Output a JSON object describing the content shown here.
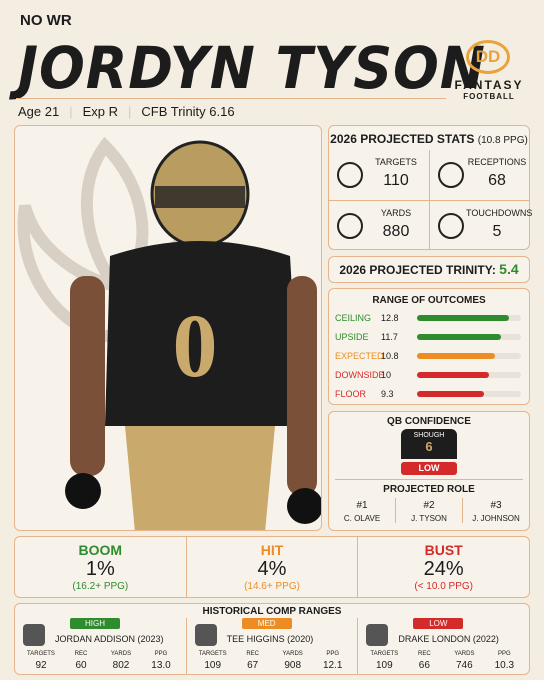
{
  "header": {
    "position": "NO WR",
    "name": "JORDYN TYSON",
    "age": "Age 21",
    "exp": "Exp R",
    "trinity": "CFB Trinity 6.16",
    "logo": "DD",
    "brand": "FANTASY",
    "brand_sub": "FOOTBALL"
  },
  "projected_stats": {
    "title": "2026 PROJECTED STATS",
    "ppg": "(10.8 PPG)",
    "stats": [
      {
        "label": "TARGETS",
        "value": 110
      },
      {
        "label": "RECEPTIONS",
        "value": 68
      },
      {
        "label": "YARDS",
        "value": 880
      },
      {
        "label": "TOUCHDOWNS",
        "value": 5
      }
    ]
  },
  "projected_trinity": {
    "label": "2026 PROJECTED TRINITY:",
    "value": 5.4
  },
  "range_of_outcomes": {
    "title": "RANGE OF OUTCOMES",
    "rows": [
      {
        "label": "CEILING",
        "value": 12.8,
        "color": "#2e8b2e"
      },
      {
        "label": "UPSIDE",
        "value": 11.7,
        "color": "#2e8b2e"
      },
      {
        "label": "EXPECTED",
        "value": 10.8,
        "color": "#ec8c22"
      },
      {
        "label": "DOWNSIDE",
        "value": 10.0,
        "color": "#d42a2a"
      },
      {
        "label": "FLOOR",
        "value": 9.3,
        "color": "#d42a2a"
      }
    ]
  },
  "qb_confidence": {
    "title": "QB CONFIDENCE",
    "qb": "SHOUGH",
    "number": "6",
    "level": "LOW"
  },
  "projected_role": {
    "title": "PROJECTED ROLE",
    "items": [
      {
        "rank": "#1",
        "name": "C. OLAVE"
      },
      {
        "rank": "#2",
        "name": "J. TYSON"
      },
      {
        "rank": "#3",
        "name": "J. JOHNSON"
      }
    ]
  },
  "outlook": [
    {
      "label": "BOOM",
      "value": "1%",
      "note": "(16.2+ PPG)",
      "color": "#2e8b2e"
    },
    {
      "label": "HIT",
      "value": "4%",
      "note": "(14.6+ PPG)",
      "color": "#ec8c22"
    },
    {
      "label": "BUST",
      "value": "24%",
      "note": "(< 10.0 PPG)",
      "color": "#d42a2a"
    }
  ],
  "comps": {
    "title": "HISTORICAL COMP RANGES",
    "items": [
      {
        "level": "HIGH",
        "level_color": "#2e8b2e",
        "name": "JORDAN ADDISON (2023)",
        "stats": [
          {
            "label": "TARGETS",
            "value": "92"
          },
          {
            "label": "REC",
            "value": "60"
          },
          {
            "label": "YARDS",
            "value": "802"
          },
          {
            "label": "PPG",
            "value": "13.0"
          }
        ]
      },
      {
        "level": "MED",
        "level_color": "#ec8c22",
        "name": "TEE HIGGINS (2020)",
        "stats": [
          {
            "label": "TARGETS",
            "value": "109"
          },
          {
            "label": "REC",
            "value": "67"
          },
          {
            "label": "YARDS",
            "value": "908"
          },
          {
            "label": "PPG",
            "value": "12.1"
          }
        ]
      },
      {
        "level": "LOW",
        "level_color": "#d42a2a",
        "name": "DRAKE LONDON (2022)",
        "stats": [
          {
            "label": "TARGETS",
            "value": "109"
          },
          {
            "label": "REC",
            "value": "66"
          },
          {
            "label": "YARDS",
            "value": "746"
          },
          {
            "label": "PPG",
            "value": "10.3"
          }
        ]
      }
    ]
  }
}
